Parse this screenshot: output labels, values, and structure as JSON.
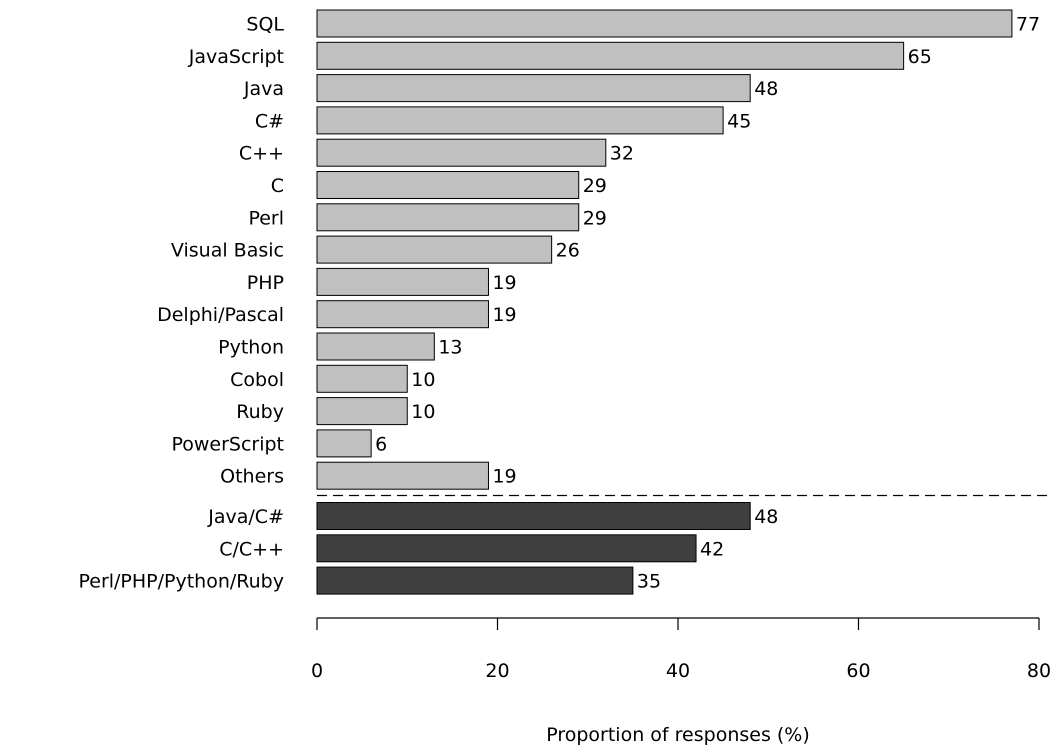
{
  "chart_data": {
    "type": "bar",
    "orientation": "horizontal",
    "title": "",
    "xlabel": "Proportion of responses (%)",
    "ylabel": "",
    "xlim": [
      0,
      80
    ],
    "xticks": [
      0,
      20,
      40,
      60,
      80
    ],
    "grid": false,
    "colors": {
      "languages": "#c0c0c0",
      "groups": "#404040",
      "outline": "#000000"
    },
    "series": [
      {
        "categories": [
          "SQL",
          "JavaScript",
          "Java",
          "C#",
          "C++",
          "C",
          "Perl",
          "Visual Basic",
          "PHP",
          "Delphi/Pascal",
          "Python",
          "Cobol",
          "Ruby",
          "PowerScript",
          "Others"
        ],
        "values": [
          77,
          65,
          48,
          45,
          32,
          29,
          29,
          26,
          19,
          19,
          13,
          10,
          10,
          6,
          19
        ]
      },
      {
        "categories": [
          "Java/C#",
          "C/C++",
          "Perl/PHP/Python/Ruby"
        ],
        "values": [
          48,
          42,
          35
        ]
      }
    ]
  }
}
